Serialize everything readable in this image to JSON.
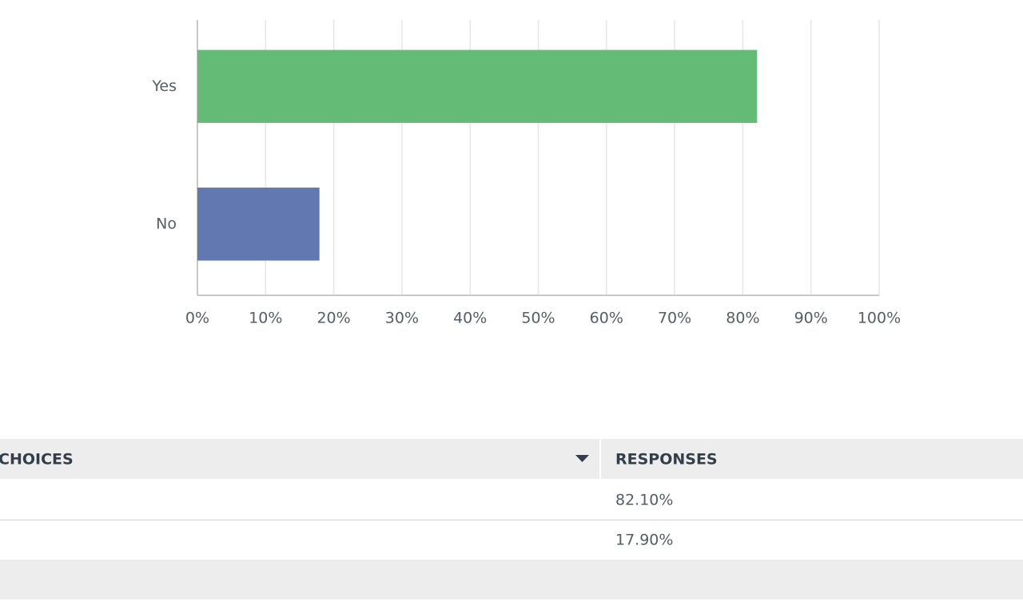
{
  "chart_data": {
    "type": "hbar",
    "categories": [
      "Yes",
      "No"
    ],
    "values": [
      82.1,
      17.9
    ],
    "colors": [
      "#64bb76",
      "#6179b0"
    ],
    "xlim": [
      0,
      100
    ],
    "xticks": [
      {
        "value": 0,
        "label": "0%"
      },
      {
        "value": 10,
        "label": "10%"
      },
      {
        "value": 20,
        "label": "20%"
      },
      {
        "value": 30,
        "label": "30%"
      },
      {
        "value": 40,
        "label": "40%"
      },
      {
        "value": 50,
        "label": "50%"
      },
      {
        "value": 60,
        "label": "60%"
      },
      {
        "value": 70,
        "label": "70%"
      },
      {
        "value": 80,
        "label": "80%"
      },
      {
        "value": 90,
        "label": "90%"
      },
      {
        "value": 100,
        "label": "100%"
      }
    ],
    "grid": true
  },
  "table": {
    "columns": [
      "CHOICES",
      "RESPONSES"
    ],
    "rows": [
      {
        "response": "82.10%"
      },
      {
        "response": "17.90%"
      }
    ]
  }
}
